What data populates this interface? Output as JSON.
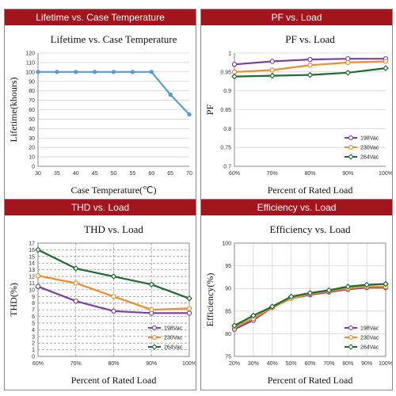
{
  "colors": {
    "header_bg": "#a3151c",
    "s198": "#7b3fa0",
    "s230": "#f28c28",
    "s264": "#1e6b2e",
    "lifetime": "#5b9bd5"
  },
  "chart_data": [
    {
      "type": "line",
      "header": "Lifetime vs. Case Temperature",
      "title": "Lifetime vs. Case Temperature",
      "xlabel": "Case Temperature(℃)",
      "ylabel": "Lifetime(khours)",
      "x": [
        30,
        35,
        40,
        45,
        50,
        55,
        60,
        65,
        70
      ],
      "x_tick_labels": [
        "30",
        "35",
        "40",
        "45",
        "50",
        "55",
        "60",
        "65",
        "70"
      ],
      "xlim": [
        30,
        70
      ],
      "ylim": [
        0,
        120
      ],
      "y_ticks": [
        0,
        10,
        20,
        30,
        40,
        50,
        60,
        70,
        80,
        90,
        100,
        110,
        120
      ],
      "y_tick_labels": [
        "0",
        "10",
        "20",
        "30",
        "40",
        "50",
        "60",
        "70",
        "80",
        "90",
        "100",
        "110",
        "120"
      ],
      "grid": "y-major",
      "legend": "none",
      "series": [
        {
          "values": [
            100,
            100,
            100,
            100,
            100,
            100,
            100,
            76,
            55
          ],
          "color": "#5b9bd5",
          "marker": "dot"
        }
      ]
    },
    {
      "type": "line",
      "header": "PF vs. Load",
      "title": "PF vs. Load",
      "xlabel": "Percent of Rated Load",
      "ylabel": "PF",
      "categories": [
        "60%",
        "70%",
        "80%",
        "90%",
        "100%"
      ],
      "ylim": [
        0.7,
        1.0
      ],
      "y_ticks": [
        0.7,
        0.75,
        0.8,
        0.85,
        0.9,
        0.95,
        1.0
      ],
      "y_tick_labels": [
        "0.7",
        "0.75",
        "0.8",
        "0.85",
        "0.9",
        "0.95",
        "1"
      ],
      "grid": "y-major",
      "legend": "right-lower",
      "series": [
        {
          "name": "198Vac",
          "values": [
            0.97,
            0.978,
            0.983,
            0.985,
            0.985
          ],
          "color": "#7b3fa0",
          "marker": "circle"
        },
        {
          "name": "230Vac",
          "values": [
            0.95,
            0.955,
            0.968,
            0.975,
            0.978
          ],
          "color": "#f28c28",
          "marker": "circle"
        },
        {
          "name": "264Vac",
          "values": [
            0.938,
            0.94,
            0.942,
            0.948,
            0.96
          ],
          "color": "#1e6b2e",
          "marker": "diamond"
        }
      ]
    },
    {
      "type": "line",
      "header": "THD vs. Load",
      "title": "THD vs. Load",
      "xlabel": "Percent of Rated Load",
      "ylabel": "THD(%)",
      "categories": [
        "60%",
        "70%",
        "80%",
        "90%",
        "100%"
      ],
      "ylim": [
        0,
        17
      ],
      "y_ticks": [
        0,
        1,
        2,
        3,
        4,
        5,
        6,
        7,
        8,
        9,
        10,
        11,
        12,
        13,
        14,
        15,
        16,
        17
      ],
      "y_tick_labels": [
        "0",
        "1",
        "2",
        "3",
        "4",
        "5",
        "6",
        "7",
        "8",
        "9",
        "10",
        "11",
        "12",
        "13",
        "14",
        "15",
        "16",
        "17"
      ],
      "grid": "xy-dashed",
      "legend": "right-lower",
      "series": [
        {
          "name": "198Vac",
          "values": [
            10.5,
            8.3,
            6.8,
            6.5,
            6.5
          ],
          "color": "#7b3fa0",
          "marker": "circle"
        },
        {
          "name": "230Vac",
          "values": [
            12.1,
            11.0,
            9.0,
            7.0,
            7.2
          ],
          "color": "#f28c28",
          "marker": "circle"
        },
        {
          "name": "264Vac",
          "values": [
            16.0,
            13.2,
            12.0,
            10.8,
            8.7
          ],
          "color": "#1e6b2e",
          "marker": "diamond"
        }
      ]
    },
    {
      "type": "line",
      "header": "Efficiency vs. Load",
      "title": "Efficiency vs. Load",
      "xlabel": "Percent of Rated Load",
      "ylabel": "Efficiency(%)",
      "categories": [
        "20%",
        "30%",
        "40%",
        "50%",
        "60%",
        "70%",
        "80%",
        "90%",
        "100%"
      ],
      "ylim": [
        75,
        100
      ],
      "y_ticks": [
        75,
        80,
        85,
        90,
        95,
        100
      ],
      "y_tick_labels": [
        "75",
        "80",
        "85",
        "90",
        "95",
        "100"
      ],
      "grid": "xy",
      "legend": "right-lower",
      "series": [
        {
          "name": "198Vac",
          "values": [
            81.0,
            83.0,
            85.8,
            87.8,
            88.6,
            89.2,
            89.8,
            90.2,
            90.2
          ],
          "color": "#7b3fa0",
          "marker": "circle"
        },
        {
          "name": "230Vac",
          "values": [
            81.5,
            83.4,
            85.8,
            87.8,
            88.8,
            89.4,
            90.0,
            90.4,
            90.4
          ],
          "color": "#f28c28",
          "marker": "circle"
        },
        {
          "name": "264Vac",
          "values": [
            81.8,
            84.0,
            86.0,
            88.2,
            89.0,
            89.6,
            90.4,
            90.8,
            91.0
          ],
          "color": "#1e6b2e",
          "marker": "diamond"
        }
      ]
    }
  ]
}
